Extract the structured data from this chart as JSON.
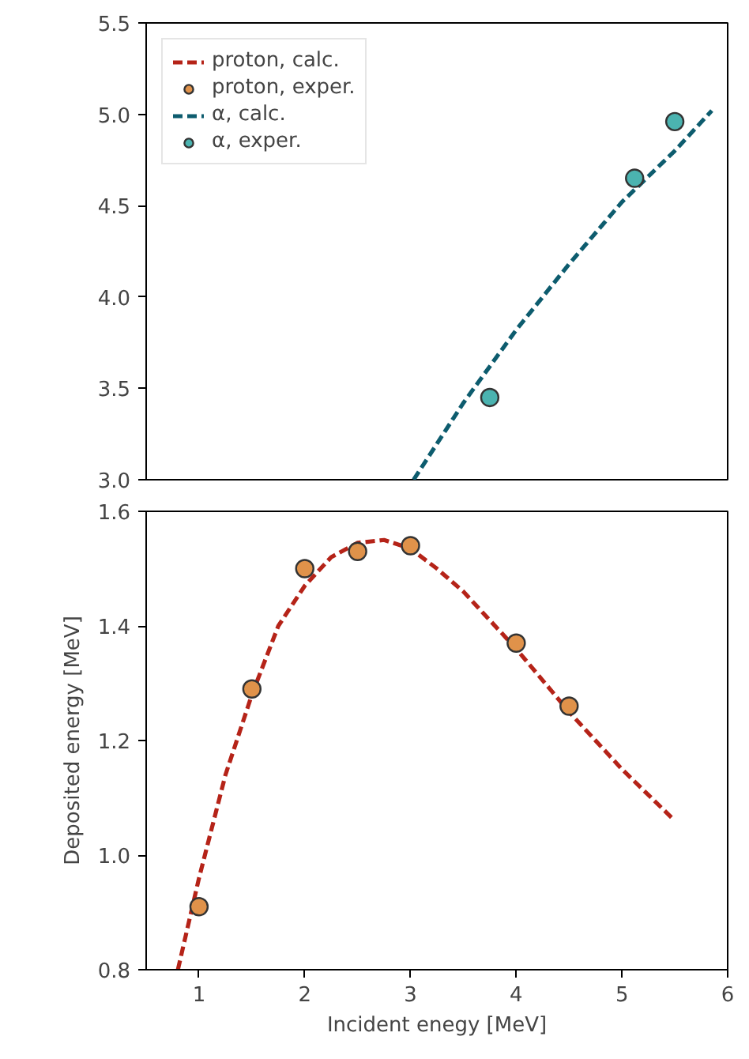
{
  "chart_data": [
    {
      "type": "line",
      "xlim": [
        0.5,
        6
      ],
      "ylim": [
        3.0,
        5.5
      ],
      "yticks": [
        {
          "value": 3.0,
          "label": "3.0"
        },
        3.5,
        {
          "value": 4.0,
          "label": "4.0"
        },
        4.5,
        {
          "value": 5.0,
          "label": "5.0"
        },
        5.5
      ],
      "tick_labels": "y",
      "grid": false,
      "legend": "top left",
      "line_style": "dashed",
      "series": [
        {
          "name": "α, calc.",
          "color": "#0d5c6e",
          "x": [
            3.03,
            3.5,
            4.0,
            4.5,
            5.0,
            5.5,
            5.85
          ],
          "values": [
            3.0,
            3.42,
            3.82,
            4.18,
            4.52,
            4.8,
            5.02
          ]
        },
        {
          "name": "α, exper.",
          "type": "scatter",
          "marker": "circle",
          "color": "#4bb3b0",
          "x": [
            3.75,
            5.12,
            5.5
          ],
          "values": [
            3.45,
            4.65,
            4.96
          ]
        }
      ]
    },
    {
      "type": "line",
      "xlim": [
        0.5,
        6
      ],
      "ylim": [
        0.8,
        1.6
      ],
      "xticks": [
        1,
        2,
        3,
        4,
        5,
        6
      ],
      "yticks": [
        0.8,
        {
          "value": 1.0,
          "label": "1.0"
        },
        1.2,
        1.4,
        1.6
      ],
      "xlabel": "Incident enegy [MeV]",
      "ylabel": "Deposited energy [MeV]",
      "grid": false,
      "legend": "top left",
      "line_style": "dashed",
      "series": [
        {
          "name": "proton, calc.",
          "color": "#b52318",
          "x": [
            0.8,
            1,
            1.25,
            1.5,
            1.75,
            2,
            2.25,
            2.5,
            2.75,
            3,
            3.25,
            3.5,
            4,
            4.5,
            5,
            5.5
          ],
          "values": [
            0.8,
            0.96,
            1.14,
            1.28,
            1.4,
            1.47,
            1.52,
            1.545,
            1.55,
            1.535,
            1.5,
            1.46,
            1.36,
            1.25,
            1.15,
            1.06
          ]
        },
        {
          "name": "proton, exper.",
          "type": "scatter",
          "marker": "circle",
          "color": "#e0924a",
          "x": [
            1,
            1.5,
            2,
            2.5,
            3,
            4,
            4.5
          ],
          "values": [
            0.91,
            1.29,
            1.5,
            1.53,
            1.54,
            1.37,
            1.26
          ]
        }
      ]
    }
  ]
}
